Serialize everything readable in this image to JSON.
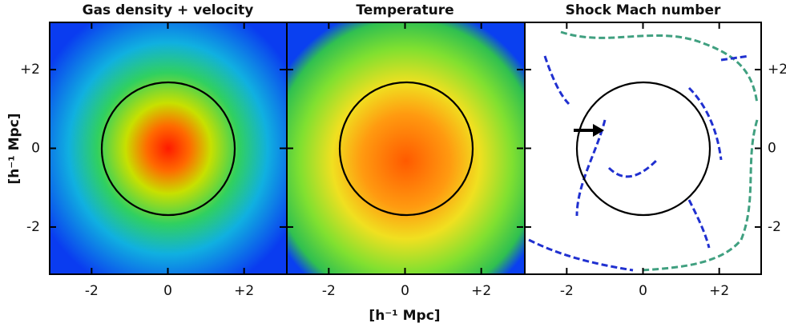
{
  "figure": {
    "panels": [
      {
        "title": "Gas density + velocity"
      },
      {
        "title": "Temperature"
      },
      {
        "title": "Shock Mach number"
      }
    ],
    "xlim": [
      -3.1,
      3.1
    ],
    "ylim": [
      -3.2,
      3.2
    ],
    "xticks": [
      -2,
      0,
      {
        "value": 2,
        "label": "+2"
      }
    ],
    "yticks": [
      -2,
      0,
      {
        "value": 2,
        "label": "+2"
      }
    ],
    "xlabel": "[h⁻¹ Mpc]",
    "ylabel": "[h⁻¹ Mpc]"
  }
}
